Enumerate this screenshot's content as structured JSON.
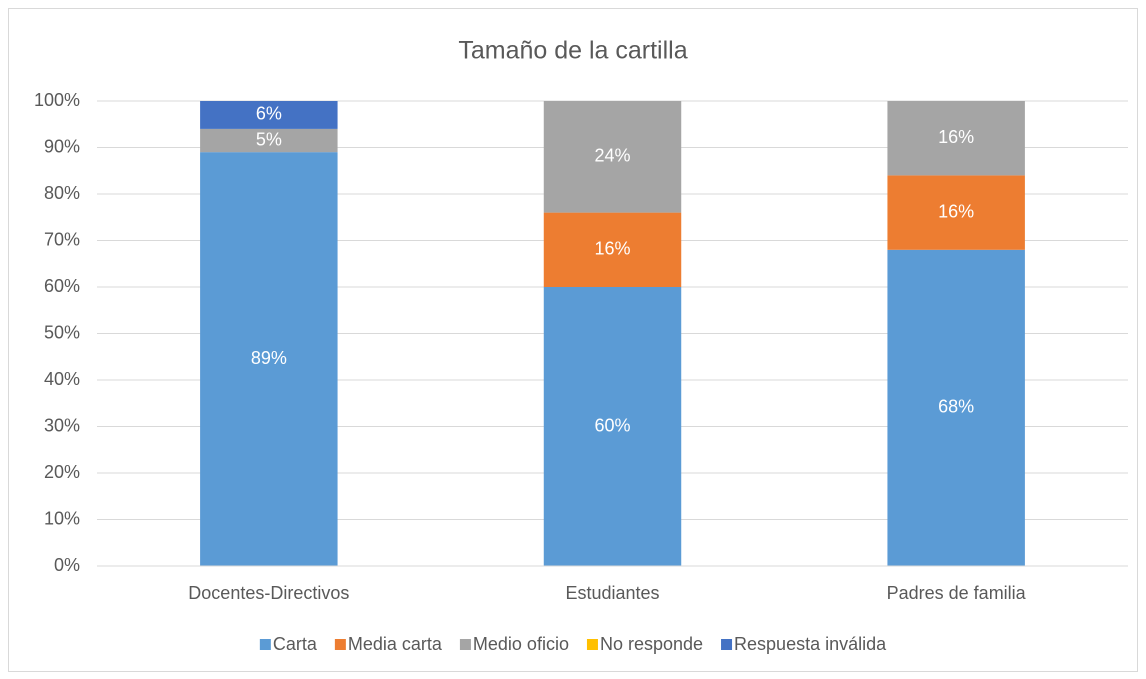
{
  "chart_data": {
    "type": "stacked_bar",
    "title": "Tamaño de la cartilla",
    "categories": [
      "Docentes-Directivos",
      "Estudiantes",
      "Padres de familia"
    ],
    "series": [
      {
        "name": "Carta",
        "color": "#5b9bd5",
        "values": [
          89,
          60,
          68
        ],
        "value_labels": [
          "89%",
          "60%",
          "68%"
        ]
      },
      {
        "name": "Media carta",
        "color": "#ed7d31",
        "values": [
          0,
          16,
          16
        ],
        "value_labels": [
          null,
          "16%",
          "16%"
        ]
      },
      {
        "name": "Medio oficio",
        "color": "#a5a5a5",
        "values": [
          5,
          24,
          16
        ],
        "value_labels": [
          "5%",
          "24%",
          "16%"
        ]
      },
      {
        "name": "No responde",
        "color": "#ffc000",
        "values": [
          0,
          0,
          0
        ],
        "value_labels": [
          null,
          null,
          null
        ]
      },
      {
        "name": "Respuesta inválida",
        "color": "#4472c4",
        "values": [
          6,
          0,
          0
        ],
        "value_labels": [
          "6%",
          null,
          null
        ]
      }
    ],
    "ylim": [
      0,
      100
    ],
    "yticks": [
      {
        "value": 0,
        "label": "0%"
      },
      {
        "value": 10,
        "label": "10%"
      },
      {
        "value": 20,
        "label": "20%"
      },
      {
        "value": 30,
        "label": "30%"
      },
      {
        "value": 40,
        "label": "40%"
      },
      {
        "value": 50,
        "label": "50%"
      },
      {
        "value": 60,
        "label": "60%"
      },
      {
        "value": 70,
        "label": "70%"
      },
      {
        "value": 80,
        "label": "80%"
      },
      {
        "value": 90,
        "label": "90%"
      },
      {
        "value": 100,
        "label": "100%"
      }
    ],
    "grid": true,
    "legend": "bottom"
  }
}
